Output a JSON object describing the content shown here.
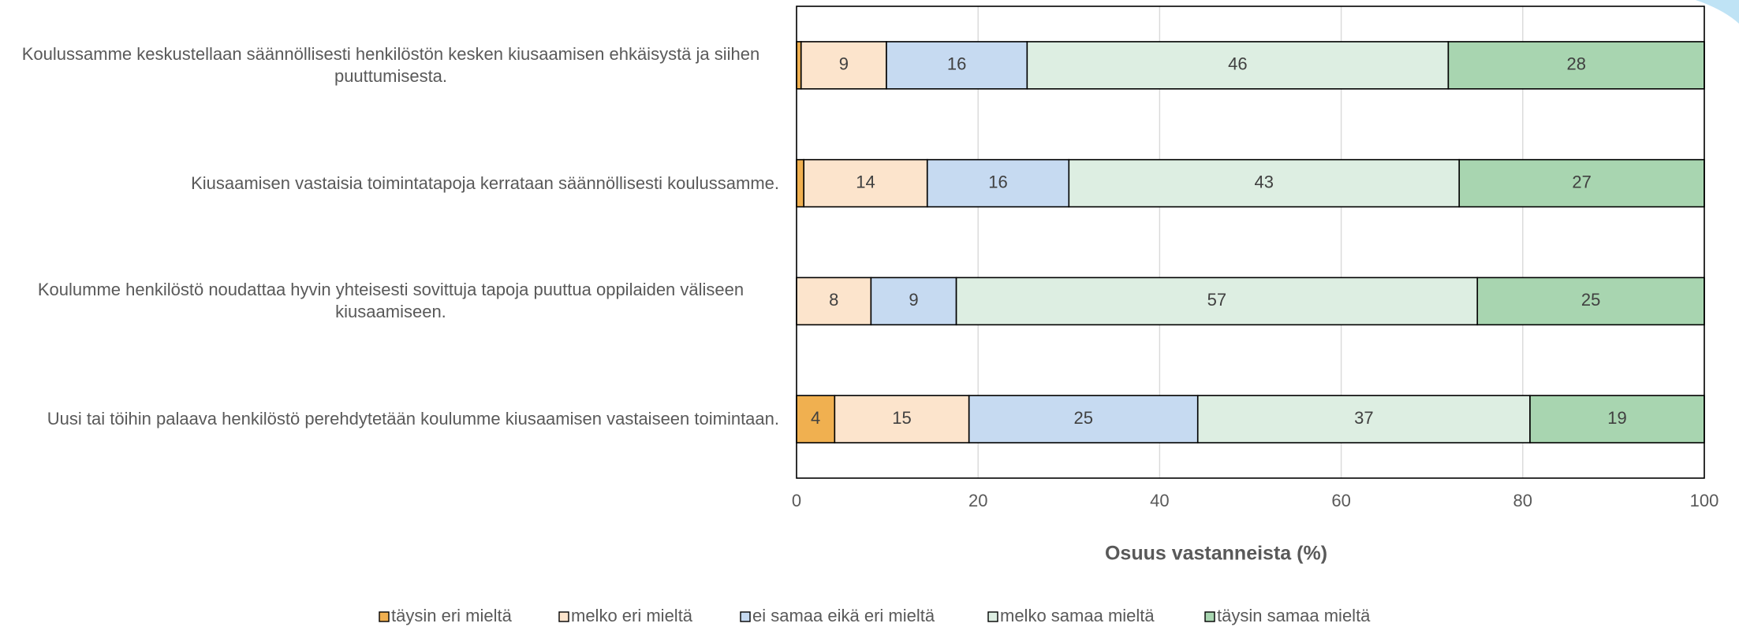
{
  "chart_data": {
    "type": "stacked-bar-horizontal",
    "categories": [
      "Koulussamme keskustellaan säännöllisesti henkilöstön kesken kiusaamisen ehkäisystä ja siihen puuttumisesta.",
      "Kiusaamisen vastaisia toimintatapoja kerrataan säännöllisesti koulussamme.",
      "Koulumme henkilöstö noudattaa hyvin yhteisesti sovittuja tapoja puuttua oppilaiden väliseen kiusaamiseen.",
      "Uusi tai töihin palaava henkilöstö perehdytetään koulumme kiusaamisen vastaiseen toimintaan."
    ],
    "series": [
      {
        "name": "täysin eri mieltä",
        "color": "#f0b050",
        "values": [
          0.5,
          0.8,
          0,
          4.2
        ],
        "value_labels": [
          null,
          null,
          null,
          "4"
        ]
      },
      {
        "name": "melko eri mieltä",
        "color": "#fce4cc",
        "values": [
          9.4,
          13.6,
          8.2,
          14.8
        ],
        "value_labels": [
          "9",
          "14",
          "8",
          "15"
        ]
      },
      {
        "name": "ei samaa eikä eri mieltä",
        "color": "#c6daf1",
        "values": [
          15.5,
          15.6,
          9.4,
          25.2
        ],
        "value_labels": [
          "16",
          "16",
          "9",
          "25"
        ]
      },
      {
        "name": "melko samaa mieltä",
        "color": "#ddeee2",
        "values": [
          46.4,
          43.0,
          57.4,
          36.6
        ],
        "value_labels": [
          "46",
          "43",
          "57",
          "37"
        ]
      },
      {
        "name": "täysin samaa mieltä",
        "color": "#a8d5b0",
        "values": [
          28.2,
          27.0,
          25.0,
          19.2
        ],
        "value_labels": [
          "28",
          "27",
          "25",
          "19"
        ]
      }
    ],
    "xlabel": "Osuus vastanneista (%)",
    "xlim": [
      0,
      100
    ],
    "xticks": [
      0,
      20,
      40,
      60,
      80,
      100
    ],
    "grid": true,
    "legend": "bottom"
  }
}
